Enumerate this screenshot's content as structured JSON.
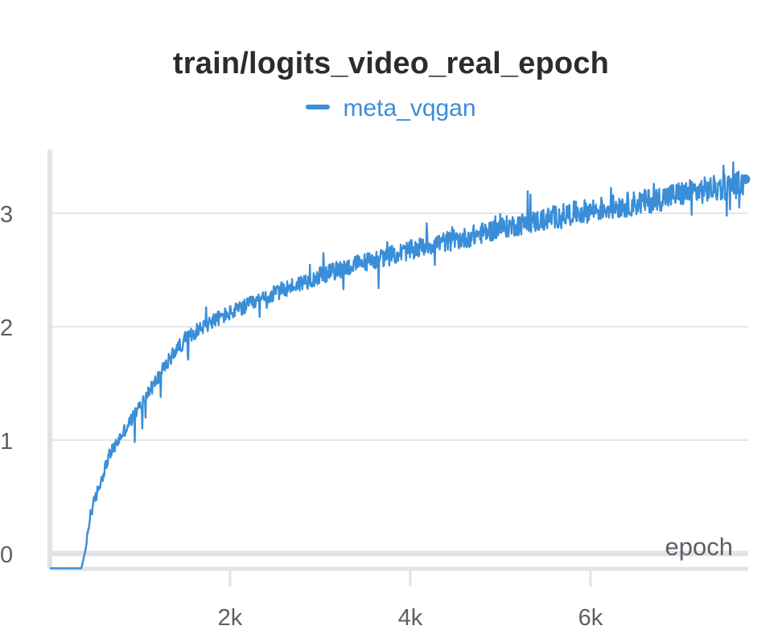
{
  "chart_data": {
    "type": "line",
    "title": "train/logits_video_real_epoch",
    "xlabel": "epoch",
    "ylabel": "",
    "xlim": [
      0,
      7750
    ],
    "ylim": [
      -0.15,
      3.55
    ],
    "x_ticks": [
      {
        "value": 2000,
        "label": "2k"
      },
      {
        "value": 4000,
        "label": "4k"
      },
      {
        "value": 6000,
        "label": "6k"
      }
    ],
    "y_ticks": [
      {
        "value": 0,
        "label": "0"
      },
      {
        "value": 1,
        "label": "1"
      },
      {
        "value": 2,
        "label": "2"
      },
      {
        "value": 3,
        "label": "3"
      }
    ],
    "grid": true,
    "legend_position": "top-center",
    "series": [
      {
        "name": "meta_vqgan",
        "color": "#3a8ed8",
        "x": [
          0,
          350,
          400,
          450,
          550,
          650,
          800,
          1000,
          1200,
          1400,
          1600,
          1800,
          2000,
          2300,
          2600,
          3000,
          3400,
          3800,
          4200,
          4600,
          5000,
          5400,
          5800,
          6200,
          6600,
          7000,
          7400,
          7700
        ],
        "y": [
          -0.13,
          -0.13,
          0.05,
          0.35,
          0.6,
          0.85,
          1.05,
          1.3,
          1.55,
          1.8,
          1.95,
          2.05,
          2.12,
          2.22,
          2.33,
          2.45,
          2.55,
          2.63,
          2.72,
          2.78,
          2.87,
          2.93,
          3.0,
          3.05,
          3.1,
          3.17,
          3.22,
          3.26
        ]
      }
    ]
  }
}
